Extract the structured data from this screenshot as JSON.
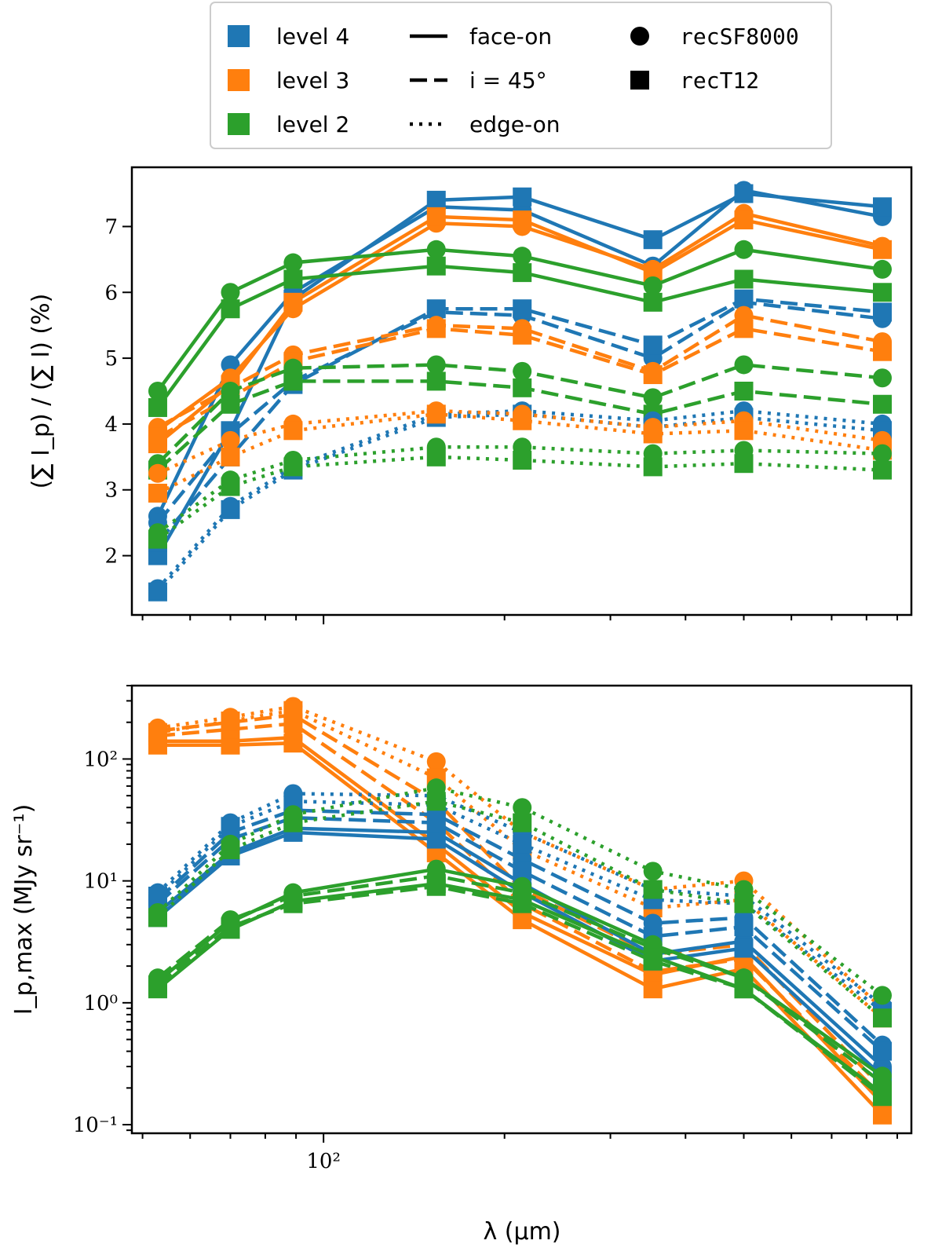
{
  "colors": {
    "level 4": "#1f77b4",
    "level 3": "#ff7f0e",
    "level 2": "#2ca02c"
  },
  "legend": {
    "levels": [
      "level 4",
      "level 3",
      "level 2"
    ],
    "linestyles": [
      {
        "style": "solid",
        "label": "face-on"
      },
      {
        "style": "dashed",
        "label": "i = 45°"
      },
      {
        "style": "dotted",
        "label": "edge-on"
      }
    ],
    "markers": [
      {
        "marker": "circle",
        "label": "recSF8000"
      },
      {
        "marker": "square",
        "label": "recT12"
      }
    ]
  },
  "chart_data": [
    {
      "type": "line",
      "panel": "top",
      "ylabel": "(∑ I_p) / (∑ I) (%)",
      "xlabel": "",
      "xscale": "log",
      "yscale": "linear",
      "xlim": [
        48,
        950
      ],
      "ylim": [
        1.1,
        7.9
      ],
      "yticks": [
        2,
        3,
        4,
        5,
        6,
        7
      ],
      "ytick_labels": [
        "2",
        "3",
        "4",
        "5",
        "6",
        "7"
      ],
      "x": [
        53,
        70,
        89,
        154,
        214,
        353,
        500,
        850
      ],
      "series": [
        {
          "level": "level 4",
          "style": "solid",
          "marker": "circle",
          "values": [
            2.6,
            4.9,
            6.0,
            7.3,
            7.25,
            6.4,
            7.55,
            7.15
          ]
        },
        {
          "level": "level 4",
          "style": "solid",
          "marker": "square",
          "values": [
            2.0,
            3.9,
            5.9,
            7.4,
            7.45,
            6.8,
            7.5,
            7.3
          ]
        },
        {
          "level": "level 3",
          "style": "solid",
          "marker": "circle",
          "values": [
            3.9,
            4.7,
            5.75,
            7.05,
            7.0,
            6.35,
            7.2,
            6.7
          ]
        },
        {
          "level": "level 3",
          "style": "solid",
          "marker": "square",
          "values": [
            3.7,
            4.6,
            5.85,
            7.15,
            7.1,
            6.3,
            7.1,
            6.65
          ]
        },
        {
          "level": "level 2",
          "style": "solid",
          "marker": "circle",
          "values": [
            4.5,
            6.0,
            6.45,
            6.65,
            6.55,
            6.1,
            6.65,
            6.35
          ]
        },
        {
          "level": "level 2",
          "style": "solid",
          "marker": "square",
          "values": [
            4.25,
            5.75,
            6.2,
            6.4,
            6.3,
            5.85,
            6.2,
            6.0
          ]
        },
        {
          "level": "level 4",
          "style": "dashed",
          "marker": "circle",
          "values": [
            2.5,
            3.85,
            4.65,
            5.7,
            5.65,
            5.0,
            5.85,
            5.6
          ]
        },
        {
          "level": "level 4",
          "style": "dashed",
          "marker": "square",
          "values": [
            2.2,
            3.5,
            4.6,
            5.75,
            5.75,
            5.2,
            5.9,
            5.7
          ]
        },
        {
          "level": "level 3",
          "style": "dashed",
          "marker": "circle",
          "values": [
            3.95,
            4.55,
            5.05,
            5.5,
            5.45,
            4.8,
            5.65,
            5.25
          ]
        },
        {
          "level": "level 3",
          "style": "dashed",
          "marker": "square",
          "values": [
            3.8,
            4.4,
            4.95,
            5.45,
            5.35,
            4.75,
            5.45,
            5.1
          ]
        },
        {
          "level": "level 2",
          "style": "dashed",
          "marker": "circle",
          "values": [
            3.4,
            4.5,
            4.85,
            4.9,
            4.8,
            4.4,
            4.9,
            4.7
          ]
        },
        {
          "level": "level 2",
          "style": "dashed",
          "marker": "square",
          "values": [
            3.3,
            4.3,
            4.65,
            4.65,
            4.55,
            4.15,
            4.5,
            4.3
          ]
        },
        {
          "level": "level 4",
          "style": "dotted",
          "marker": "circle",
          "values": [
            1.5,
            2.75,
            3.35,
            4.15,
            4.2,
            4.05,
            4.2,
            4.0
          ]
        },
        {
          "level": "level 4",
          "style": "dotted",
          "marker": "square",
          "values": [
            1.45,
            2.7,
            3.3,
            4.1,
            4.15,
            3.95,
            4.1,
            3.9
          ]
        },
        {
          "level": "level 3",
          "style": "dotted",
          "marker": "circle",
          "values": [
            3.25,
            3.75,
            4.0,
            4.2,
            4.15,
            3.95,
            4.05,
            3.75
          ]
        },
        {
          "level": "level 3",
          "style": "dotted",
          "marker": "square",
          "values": [
            2.95,
            3.5,
            3.9,
            4.15,
            4.05,
            3.85,
            3.9,
            3.6
          ]
        },
        {
          "level": "level 2",
          "style": "dotted",
          "marker": "circle",
          "values": [
            2.35,
            3.15,
            3.45,
            3.65,
            3.65,
            3.55,
            3.6,
            3.55
          ]
        },
        {
          "level": "level 2",
          "style": "dotted",
          "marker": "square",
          "values": [
            2.25,
            3.05,
            3.35,
            3.5,
            3.45,
            3.35,
            3.4,
            3.3
          ]
        }
      ]
    },
    {
      "type": "line",
      "panel": "bottom",
      "xlabel": "λ (μm)",
      "ylabel": "I_p,max (MJy sr⁻¹)",
      "xscale": "log",
      "yscale": "log",
      "xlim": [
        48,
        950
      ],
      "ylim": [
        0.085,
        400
      ],
      "yticks": [
        0.1,
        1,
        10,
        100
      ],
      "ytick_labels": [
        "10⁻¹",
        "10⁰",
        "10¹",
        "10²"
      ],
      "xticks": [
        100
      ],
      "xtick_labels": [
        "10²"
      ],
      "x": [
        53,
        70,
        89,
        154,
        214,
        353,
        500,
        850
      ],
      "series": [
        {
          "level": "level 3",
          "style": "solid",
          "marker": "circle",
          "values": [
            140,
            140,
            150,
            20,
            5.5,
            1.7,
            2.4,
            0.15
          ]
        },
        {
          "level": "level 3",
          "style": "solid",
          "marker": "square",
          "values": [
            130,
            130,
            135,
            17,
            4.8,
            1.3,
            1.9,
            0.12
          ]
        },
        {
          "level": "level 3",
          "style": "dashed",
          "marker": "circle",
          "values": [
            170,
            200,
            230,
            45,
            8.5,
            2.5,
            3.0,
            0.2
          ]
        },
        {
          "level": "level 3",
          "style": "dashed",
          "marker": "square",
          "values": [
            155,
            175,
            195,
            30,
            6.5,
            1.8,
            2.3,
            0.17
          ]
        },
        {
          "level": "level 3",
          "style": "dotted",
          "marker": "circle",
          "values": [
            180,
            220,
            270,
            95,
            25,
            8.5,
            10,
            0.9
          ]
        },
        {
          "level": "level 3",
          "style": "dotted",
          "marker": "square",
          "values": [
            165,
            205,
            250,
            70,
            18,
            6.0,
            7.0,
            0.75
          ]
        },
        {
          "level": "level 4",
          "style": "solid",
          "marker": "circle",
          "values": [
            5.5,
            17,
            27,
            25,
            9.5,
            2.5,
            3.2,
            0.3
          ]
        },
        {
          "level": "level 4",
          "style": "solid",
          "marker": "square",
          "values": [
            5.0,
            16,
            25,
            22,
            8.0,
            2.2,
            2.8,
            0.25
          ]
        },
        {
          "level": "level 4",
          "style": "dashed",
          "marker": "circle",
          "values": [
            7.0,
            25,
            38,
            35,
            15,
            4.5,
            5.0,
            0.45
          ]
        },
        {
          "level": "level 4",
          "style": "dashed",
          "marker": "square",
          "values": [
            6.5,
            22,
            33,
            30,
            12,
            3.5,
            4.2,
            0.4
          ]
        },
        {
          "level": "level 4",
          "style": "dotted",
          "marker": "circle",
          "values": [
            8.0,
            30,
            52,
            50,
            25,
            8.5,
            7.5,
            0.95
          ]
        },
        {
          "level": "level 4",
          "style": "dotted",
          "marker": "square",
          "values": [
            7.5,
            28,
            45,
            42,
            20,
            7.0,
            6.5,
            0.85
          ]
        },
        {
          "level": "level 2",
          "style": "solid",
          "marker": "circle",
          "values": [
            1.5,
            4.6,
            8.0,
            12.5,
            9.0,
            3.0,
            1.6,
            0.25
          ]
        },
        {
          "level": "level 2",
          "style": "solid",
          "marker": "square",
          "values": [
            1.3,
            4.0,
            6.8,
            9.5,
            7.0,
            2.4,
            1.3,
            0.18
          ]
        },
        {
          "level": "level 2",
          "style": "dashed",
          "marker": "circle",
          "values": [
            1.6,
            4.8,
            7.5,
            11.0,
            8.0,
            2.8,
            1.6,
            0.22
          ]
        },
        {
          "level": "level 2",
          "style": "dashed",
          "marker": "square",
          "values": [
            1.4,
            4.2,
            6.5,
            9.0,
            6.5,
            2.2,
            1.3,
            0.17
          ]
        },
        {
          "level": "level 2",
          "style": "dotted",
          "marker": "circle",
          "values": [
            5.5,
            20,
            35,
            58,
            40,
            12,
            8.5,
            1.15
          ]
        },
        {
          "level": "level 2",
          "style": "dotted",
          "marker": "square",
          "values": [
            5.0,
            18,
            30,
            45,
            30,
            8.5,
            6.5,
            0.75
          ]
        }
      ]
    }
  ]
}
